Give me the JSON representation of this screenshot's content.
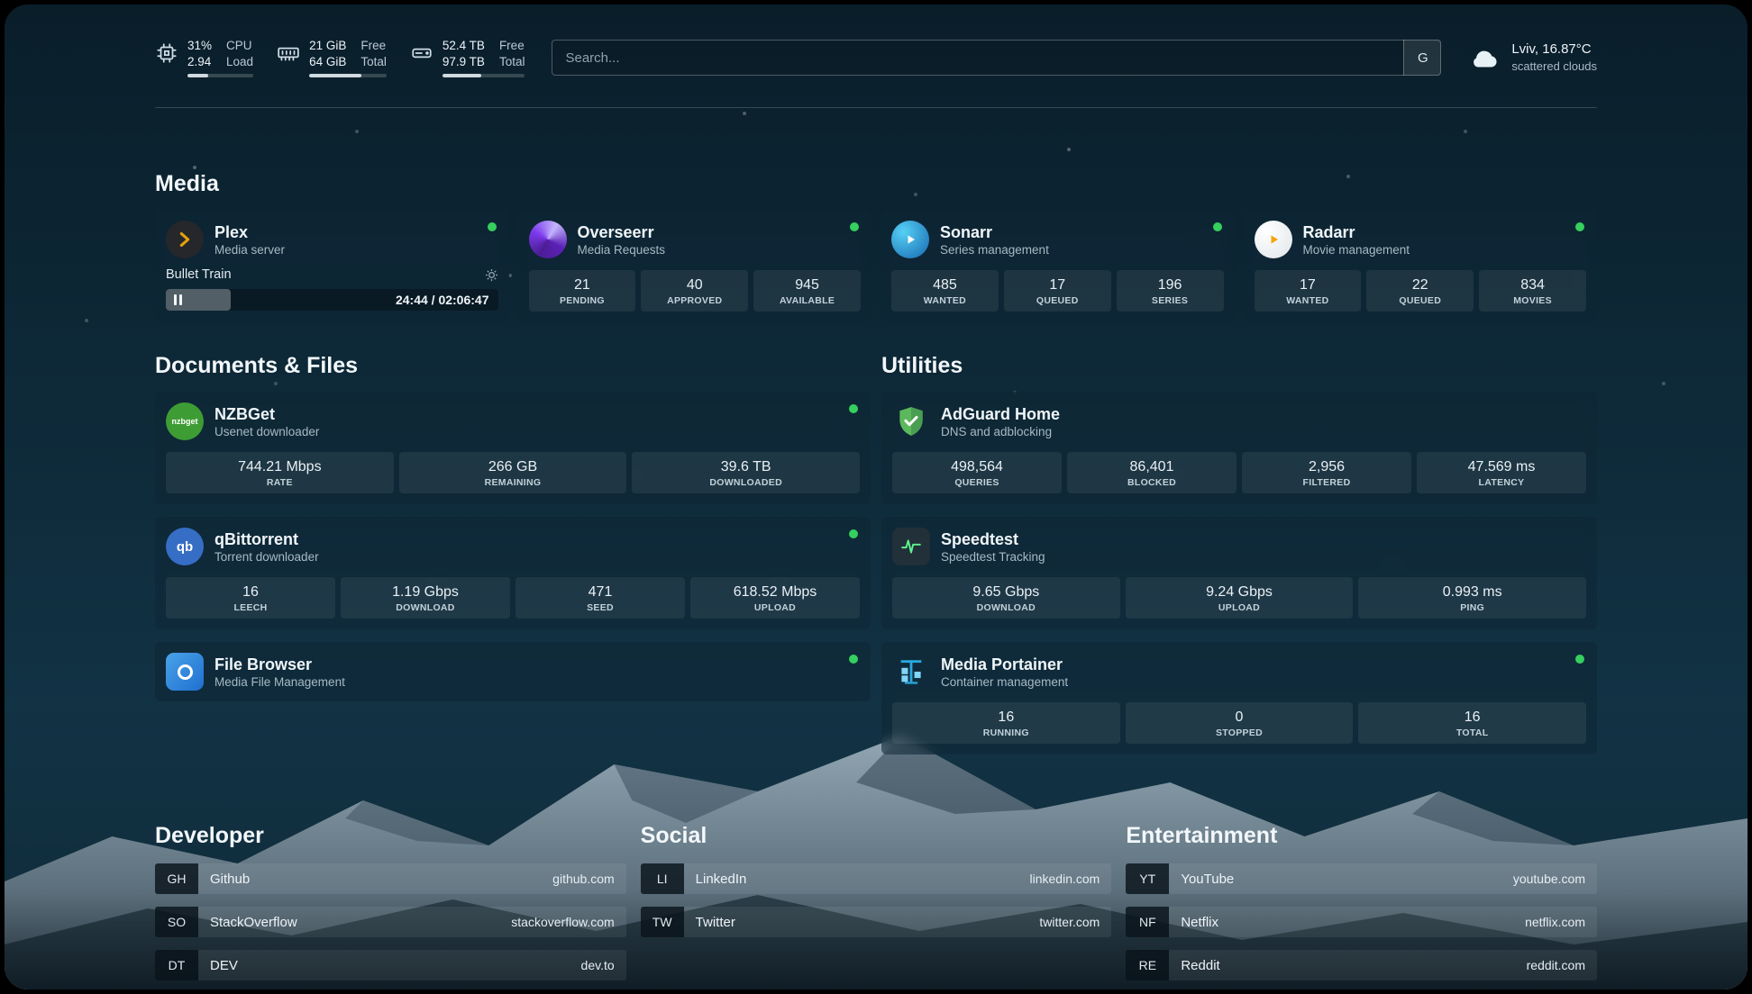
{
  "topbar": {
    "cpu": {
      "value1": "31%",
      "value2": "2.94",
      "label1": "CPU",
      "label2": "Load",
      "percent": 31
    },
    "ram": {
      "value1": "21 GiB",
      "value2": "64 GiB",
      "label1": "Free",
      "label2": "Total",
      "percent": 67
    },
    "disk": {
      "value1": "52.4 TB",
      "value2": "97.9 TB",
      "label1": "Free",
      "label2": "Total",
      "percent": 47
    },
    "search": {
      "placeholder": "Search...",
      "button_label": "G"
    },
    "weather": {
      "location": "Lviv, 16.87°C",
      "condition": "scattered clouds"
    }
  },
  "media": {
    "title": "Media",
    "plex": {
      "name": "Plex",
      "desc": "Media server",
      "now_playing": "Bullet Train",
      "time": "24:44 / 02:06:47",
      "progress": 19.5
    },
    "overseerr": {
      "name": "Overseerr",
      "desc": "Media Requests",
      "stats": [
        {
          "value": "21",
          "label": "PENDING"
        },
        {
          "value": "40",
          "label": "APPROVED"
        },
        {
          "value": "945",
          "label": "AVAILABLE"
        }
      ]
    },
    "sonarr": {
      "name": "Sonarr",
      "desc": "Series management",
      "stats": [
        {
          "value": "485",
          "label": "WANTED"
        },
        {
          "value": "17",
          "label": "QUEUED"
        },
        {
          "value": "196",
          "label": "SERIES"
        }
      ]
    },
    "radarr": {
      "name": "Radarr",
      "desc": "Movie management",
      "stats": [
        {
          "value": "17",
          "label": "WANTED"
        },
        {
          "value": "22",
          "label": "QUEUED"
        },
        {
          "value": "834",
          "label": "MOVIES"
        }
      ]
    }
  },
  "documents": {
    "title": "Documents & Files",
    "nzbget": {
      "name": "NZBGet",
      "desc": "Usenet downloader",
      "icon_text": "nzbget",
      "stats": [
        {
          "value": "744.21 Mbps",
          "label": "RATE"
        },
        {
          "value": "266 GB",
          "label": "REMAINING"
        },
        {
          "value": "39.6 TB",
          "label": "DOWNLOADED"
        }
      ]
    },
    "qbittorrent": {
      "name": "qBittorrent",
      "desc": "Torrent downloader",
      "icon_text": "qb",
      "stats": [
        {
          "value": "16",
          "label": "LEECH"
        },
        {
          "value": "1.19 Gbps",
          "label": "DOWNLOAD"
        },
        {
          "value": "471",
          "label": "SEED"
        },
        {
          "value": "618.52 Mbps",
          "label": "UPLOAD"
        }
      ]
    },
    "filebrowser": {
      "name": "File Browser",
      "desc": "Media File Management"
    }
  },
  "utilities": {
    "title": "Utilities",
    "adguard": {
      "name": "AdGuard Home",
      "desc": "DNS and adblocking",
      "stats": [
        {
          "value": "498,564",
          "label": "QUERIES"
        },
        {
          "value": "86,401",
          "label": "BLOCKED"
        },
        {
          "value": "2,956",
          "label": "FILTERED"
        },
        {
          "value": "47.569 ms",
          "label": "LATENCY"
        }
      ]
    },
    "speedtest": {
      "name": "Speedtest",
      "desc": "Speedtest Tracking",
      "stats": [
        {
          "value": "9.65 Gbps",
          "label": "DOWNLOAD"
        },
        {
          "value": "9.24 Gbps",
          "label": "UPLOAD"
        },
        {
          "value": "0.993 ms",
          "label": "PING"
        }
      ]
    },
    "portainer": {
      "name": "Media Portainer",
      "desc": "Container management",
      "stats": [
        {
          "value": "16",
          "label": "RUNNING"
        },
        {
          "value": "0",
          "label": "STOPPED"
        },
        {
          "value": "16",
          "label": "TOTAL"
        }
      ]
    }
  },
  "bookmarks": [
    {
      "title": "Developer",
      "items": [
        {
          "abbr": "GH",
          "name": "Github",
          "domain": "github.com"
        },
        {
          "abbr": "SO",
          "name": "StackOverflow",
          "domain": "stackoverflow.com"
        },
        {
          "abbr": "DT",
          "name": "DEV",
          "domain": "dev.to"
        }
      ]
    },
    {
      "title": "Social",
      "items": [
        {
          "abbr": "LI",
          "name": "LinkedIn",
          "domain": "linkedin.com"
        },
        {
          "abbr": "TW",
          "name": "Twitter",
          "domain": "twitter.com"
        }
      ]
    },
    {
      "title": "Entertainment",
      "items": [
        {
          "abbr": "YT",
          "name": "YouTube",
          "domain": "youtube.com"
        },
        {
          "abbr": "NF",
          "name": "Netflix",
          "domain": "netflix.com"
        },
        {
          "abbr": "RE",
          "name": "Reddit",
          "domain": "reddit.com"
        }
      ]
    }
  ]
}
